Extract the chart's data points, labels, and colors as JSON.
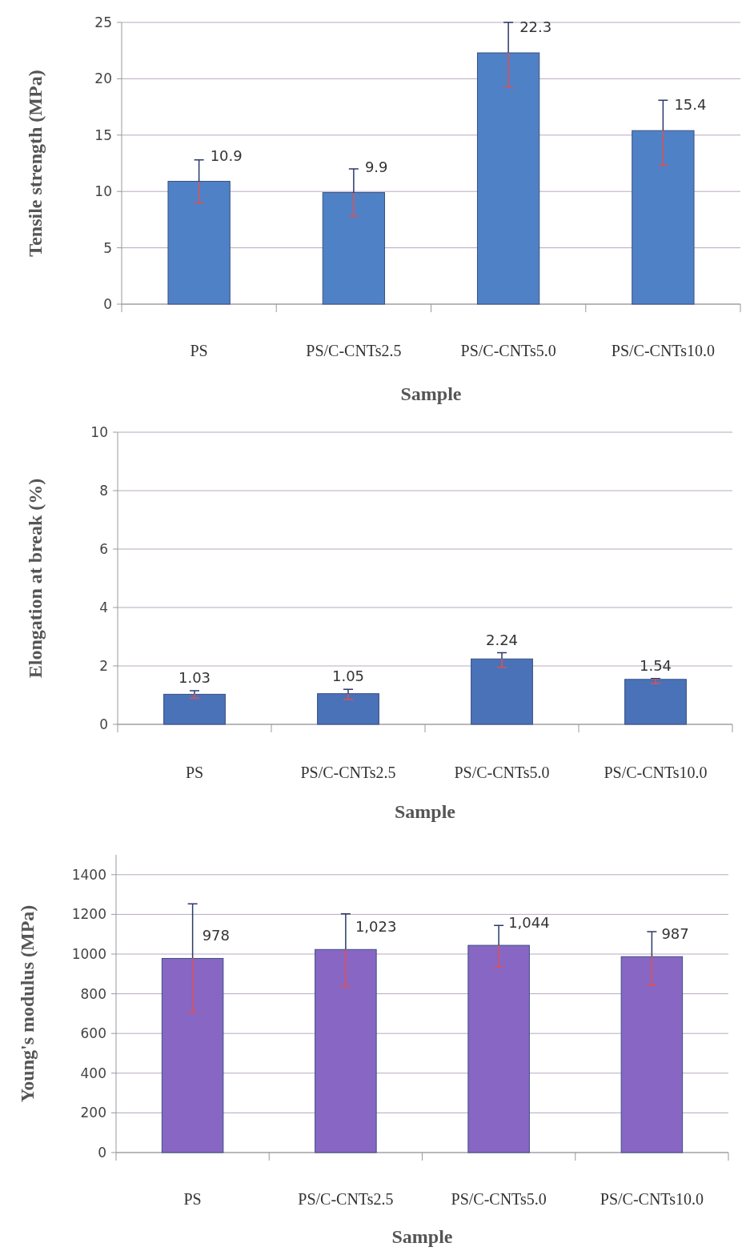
{
  "chart_data": [
    {
      "type": "bar",
      "xlabel": "Sample",
      "ylabel": "Tensile strength  (MPa)",
      "categories": [
        "PS",
        "PS/C-CNTs2.5",
        "PS/C-CNTs5.0",
        "PS/C-CNTs10.0"
      ],
      "values": [
        10.9,
        9.9,
        22.3,
        15.4
      ],
      "color": "#4f81c7",
      "errors": [
        [
          9.0,
          12.8
        ],
        [
          7.8,
          12.0
        ],
        [
          19.3,
          25
        ],
        [
          12.3,
          18.1
        ]
      ],
      "ylim": [
        0,
        25
      ],
      "yticks": [
        0,
        5,
        10,
        15,
        20,
        25
      ],
      "grid": "y",
      "data_labels": true
    },
    {
      "type": "bar",
      "xlabel": "Sample",
      "ylabel": "Elongation at break (%)",
      "categories": [
        "PS",
        "PS/C-CNTs2.5",
        "PS/C-CNTs5.0",
        "PS/C-CNTs10.0"
      ],
      "values": [
        1.03,
        1.05,
        2.24,
        1.54
      ],
      "color": "#4a72b8",
      "errors": [
        [
          0.9,
          1.15
        ],
        [
          0.85,
          1.2
        ],
        [
          1.95,
          2.45
        ],
        [
          1.4,
          1.57
        ]
      ],
      "ylim": [
        0,
        10
      ],
      "yticks": [
        0,
        2,
        4,
        6,
        8,
        10
      ],
      "grid": "y",
      "data_labels": true
    },
    {
      "type": "bar",
      "xlabel": "Sample",
      "ylabel": "Young's modulus (MPa)",
      "categories": [
        "PS",
        "PS/C-CNTs2.5",
        "PS/C-CNTs5.0",
        "PS/C-CNTs10.0"
      ],
      "values": [
        978,
        1023,
        1044,
        987
      ],
      "value_labels": [
        "978",
        "1,023",
        "1,044",
        "987"
      ],
      "color": "#8766c4",
      "errors": [
        [
          707,
          1253
        ],
        [
          838,
          1203
        ],
        [
          933,
          1144
        ],
        [
          842,
          1113
        ]
      ],
      "ylim": [
        0,
        1500
      ],
      "yticks": [
        0,
        200,
        400,
        600,
        800,
        1000,
        1200,
        1400
      ],
      "grid": "y"
    }
  ]
}
